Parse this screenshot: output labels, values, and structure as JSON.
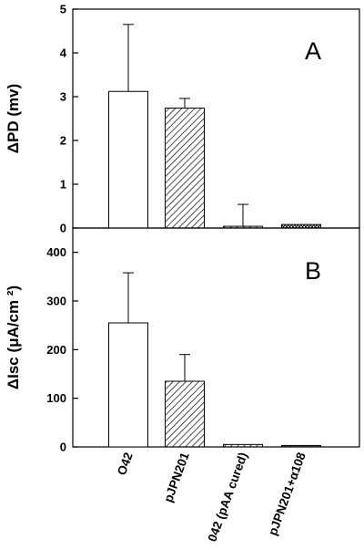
{
  "chart_data": [
    {
      "type": "bar",
      "panel": "A",
      "ylabel": "ΔPD (mv)",
      "ylim": [
        0,
        5
      ],
      "yticks": [
        0,
        1,
        2,
        3,
        4,
        5
      ],
      "categories": [
        "O42",
        "pJPN201",
        "042 (pAA cured)",
        "pJPN201+α108"
      ],
      "values": [
        3.12,
        2.74,
        0.04,
        0.08
      ],
      "errors": [
        1.53,
        0.22,
        0.5,
        0
      ],
      "fills": [
        "open",
        "hatched",
        "hatched",
        "crosshatched"
      ]
    },
    {
      "type": "bar",
      "panel": "B",
      "ylabel": "ΔIsc (μA/cm ²)",
      "ylim": [
        0,
        450
      ],
      "yticks": [
        0,
        100,
        200,
        300,
        400
      ],
      "categories": [
        "O42",
        "pJPN201",
        "042 (pAA cured)",
        "pJPN201+α108"
      ],
      "values": [
        255,
        135,
        5,
        3
      ],
      "errors": [
        103,
        55,
        0,
        0
      ],
      "fills": [
        "open",
        "hatched",
        "hatched",
        "crosshatched"
      ]
    }
  ]
}
